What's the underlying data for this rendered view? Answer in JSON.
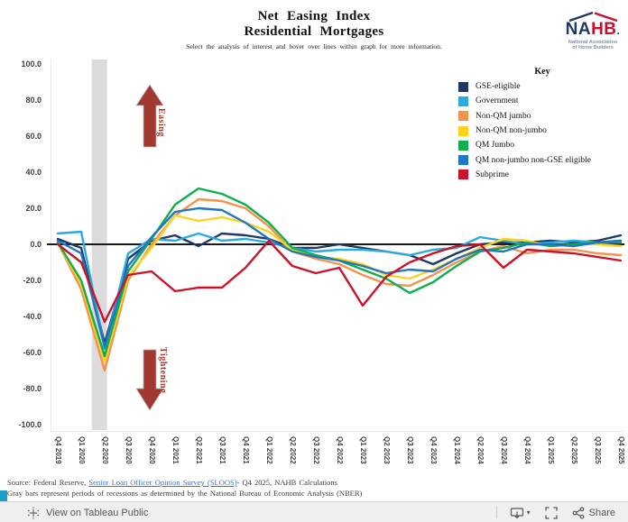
{
  "header": {
    "title_line1": "Net Easing Index",
    "title_line2": "Residential Mortgages",
    "subtitle": "Select the analysis of interest and hover over lines within graph for more information.",
    "logo": {
      "name_part1": "NA",
      "name_part2": "HB",
      "dot": ".",
      "tagline_line1": "National Association",
      "tagline_line2": "of Home Builders",
      "navy": "#1f3864",
      "red": "#c8102e"
    }
  },
  "chart_data": {
    "type": "line",
    "title": "Net Easing Index — Residential Mortgages",
    "xlabel": "",
    "ylabel": "",
    "ylim": [
      -100,
      100
    ],
    "y_ticks": [
      100,
      80,
      60,
      40,
      20,
      0,
      -20,
      -40,
      -60,
      -80,
      -100
    ],
    "grid": false,
    "zero_line_color": "#1a1a1a",
    "legend_title": "Key",
    "legend_position": "top-right",
    "recession_band": {
      "from": "Q1 2020",
      "to": "Q2 2020",
      "color": "#dbdbdb"
    },
    "annotations": [
      {
        "text": "Easing",
        "direction": "up",
        "color": "#a23931"
      },
      {
        "text": "Tightening",
        "direction": "down",
        "color": "#a23931"
      }
    ],
    "x_categories": [
      "Q4 2019",
      "Q1 2020",
      "Q2 2020",
      "Q3 2020",
      "Q4 2020",
      "Q1 2021",
      "Q2 2021",
      "Q3 2021",
      "Q4 2021",
      "Q1 2022",
      "Q2 2022",
      "Q3 2022",
      "Q4 2022",
      "Q1 2023",
      "Q2 2023",
      "Q3 2023",
      "Q4 2023",
      "Q1 2024",
      "Q2 2024",
      "Q3 2024",
      "Q4 2024",
      "Q1 2025",
      "Q2 2025",
      "Q3 2025",
      "Q4 2025"
    ],
    "series": [
      {
        "name": "GSE-eligible",
        "color": "#1f3864",
        "values": [
          3,
          -2,
          -55,
          -8,
          2,
          5,
          -1,
          6,
          5,
          3,
          -2,
          -2,
          0,
          -2,
          -4,
          -6,
          -11,
          -5,
          0,
          1,
          1,
          2,
          1,
          2,
          5
        ]
      },
      {
        "name": "Government",
        "color": "#29abe2",
        "values": [
          6,
          7,
          -58,
          -5,
          3,
          2,
          6,
          2,
          3,
          1,
          -2,
          -4,
          -3,
          -3,
          -4,
          -6,
          -3,
          -2,
          4,
          2,
          0,
          1,
          2,
          1,
          2
        ]
      },
      {
        "name": "Non-QM jumbo",
        "color": "#f5924b",
        "values": [
          1,
          -25,
          -70,
          -20,
          0,
          16,
          25,
          24,
          20,
          10,
          -4,
          -8,
          -11,
          -17,
          -22,
          -23,
          -17,
          -10,
          -4,
          -1,
          -5,
          -3,
          -3,
          -5,
          -6
        ]
      },
      {
        "name": "Non-QM non-jumbo",
        "color": "#ffd21f",
        "values": [
          1,
          -22,
          -65,
          -18,
          -2,
          16,
          13,
          15,
          12,
          7,
          -3,
          -7,
          -8,
          -11,
          -17,
          -19,
          -14,
          -8,
          -2,
          3,
          2,
          -1,
          0,
          0,
          -1
        ]
      },
      {
        "name": "QM Jumbo",
        "color": "#0fae4f",
        "values": [
          1,
          -20,
          -62,
          -15,
          3,
          22,
          31,
          28,
          22,
          12,
          -2,
          -6,
          -9,
          -14,
          -19,
          -27,
          -21,
          -12,
          -4,
          -2,
          1,
          -1,
          0,
          1,
          1
        ]
      },
      {
        "name": "QM non-jumbo non-GSE eligible",
        "color": "#2176c4",
        "values": [
          2,
          -5,
          -57,
          -12,
          4,
          18,
          20,
          19,
          12,
          3,
          -4,
          -7,
          -9,
          -12,
          -16,
          -14,
          -15,
          -8,
          -3,
          -4,
          0,
          0,
          -1,
          1,
          2
        ]
      },
      {
        "name": "Subprime",
        "color": "#ce1126",
        "values": [
          0,
          -10,
          -43,
          -17,
          -15,
          -26,
          -24,
          -24,
          -13,
          2,
          -12,
          -16,
          -13,
          -34,
          -18,
          -10,
          -5,
          -1,
          0,
          -13,
          -3,
          -4,
          -5,
          -7,
          -9
        ]
      }
    ]
  },
  "footer": {
    "source_prefix": "Source: Federal Reserve, ",
    "source_link": "Senior Loan Officer Opinion Survey (SLOOS)",
    "source_suffix": "- Q4 2025, NAHB Calculations",
    "note": "Gray bars represent periods of recessions as determined by the National Bureau of Economic Analysis (NBER)"
  },
  "toolbar": {
    "view_label": "View on Tableau Public",
    "share_label": "Share"
  }
}
